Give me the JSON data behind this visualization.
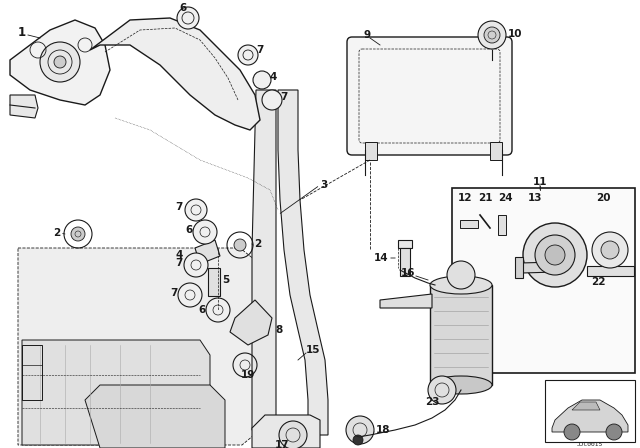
{
  "bg_color": "#ffffff",
  "fig_width": 6.4,
  "fig_height": 4.48,
  "dpi": 100,
  "lc": "#1a1a1a",
  "lw": 0.8,
  "fs": 7.5,
  "watermark": "JJC0015"
}
